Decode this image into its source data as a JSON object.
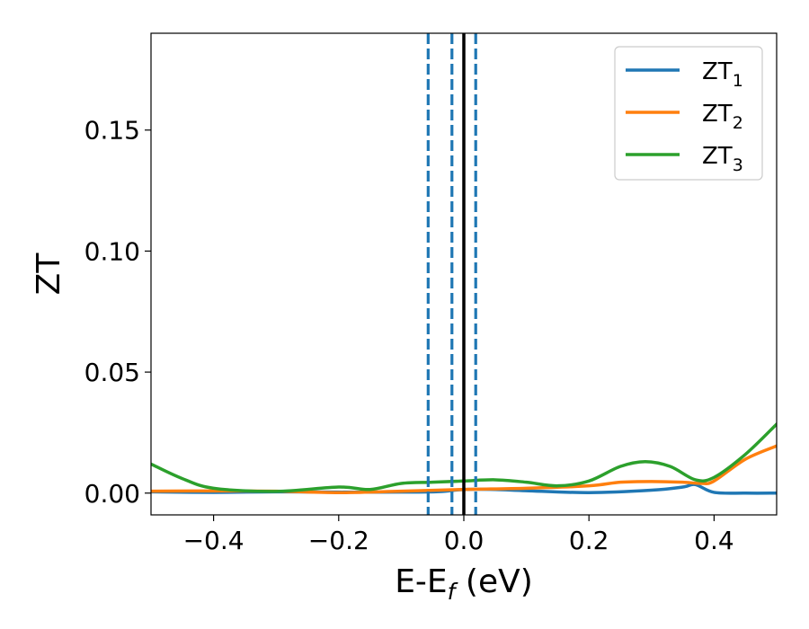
{
  "chart_data": {
    "type": "line",
    "xlabel": {
      "main": "E-E",
      "sub": "f",
      "unit": " (eV)"
    },
    "ylabel": "ZT",
    "xlim": [
      -0.5,
      0.5
    ],
    "ylim": [
      -0.009,
      0.19
    ],
    "x_ticks": [
      -0.4,
      -0.2,
      0.0,
      0.2,
      0.4
    ],
    "x_tick_labels": [
      "−0.4",
      "−0.2",
      "0.0",
      "0.2",
      "0.4"
    ],
    "y_ticks": [
      0.0,
      0.05,
      0.1,
      0.15
    ],
    "y_tick_labels": [
      "0.00",
      "0.05",
      "0.10",
      "0.15"
    ],
    "grid": false,
    "legend_placement": "top-right",
    "series": [
      {
        "name": "ZT",
        "name_sub": "1",
        "color": "#1f77b4",
        "x": [
          -0.5,
          -0.4,
          -0.3,
          -0.2,
          -0.1,
          -0.04,
          0.0,
          0.05,
          0.1,
          0.2,
          0.3,
          0.35,
          0.37,
          0.4,
          0.45,
          0.5
        ],
        "y": [
          0.0005,
          0.0003,
          0.0005,
          0.0004,
          0.0004,
          0.0006,
          0.0015,
          0.0015,
          0.001,
          0.0002,
          0.0012,
          0.0025,
          0.0035,
          0.0003,
          0.0,
          0.0
        ]
      },
      {
        "name": "ZT",
        "name_sub": "2",
        "color": "#ff7f0e",
        "x": [
          -0.5,
          -0.4,
          -0.3,
          -0.2,
          -0.1,
          0.0,
          0.1,
          0.2,
          0.25,
          0.3,
          0.35,
          0.38,
          0.4,
          0.45,
          0.5
        ],
        "y": [
          0.0008,
          0.0009,
          0.0008,
          0.0002,
          0.0008,
          0.0015,
          0.002,
          0.003,
          0.0045,
          0.0048,
          0.0045,
          0.004,
          0.005,
          0.014,
          0.0195
        ]
      },
      {
        "name": "ZT",
        "name_sub": "3",
        "color": "#2ca02c",
        "x": [
          -0.5,
          -0.45,
          -0.4,
          -0.3,
          -0.2,
          -0.15,
          -0.1,
          -0.05,
          0.0,
          0.05,
          0.1,
          0.15,
          0.2,
          0.25,
          0.29,
          0.33,
          0.37,
          0.4,
          0.45,
          0.5
        ],
        "y": [
          0.012,
          0.006,
          0.002,
          0.0007,
          0.0025,
          0.0015,
          0.004,
          0.0045,
          0.005,
          0.0055,
          0.0045,
          0.003,
          0.005,
          0.011,
          0.013,
          0.011,
          0.0055,
          0.0065,
          0.016,
          0.0285
        ]
      }
    ],
    "reference_lines": [
      {
        "x": -0.057,
        "style": "dashed",
        "color": "#1f77b4"
      },
      {
        "x": -0.019,
        "style": "dashed",
        "color": "#1f77b4"
      },
      {
        "x": 0.0,
        "style": "solid",
        "color": "#000000"
      },
      {
        "x": 0.019,
        "style": "dashed",
        "color": "#1f77b4"
      }
    ]
  }
}
